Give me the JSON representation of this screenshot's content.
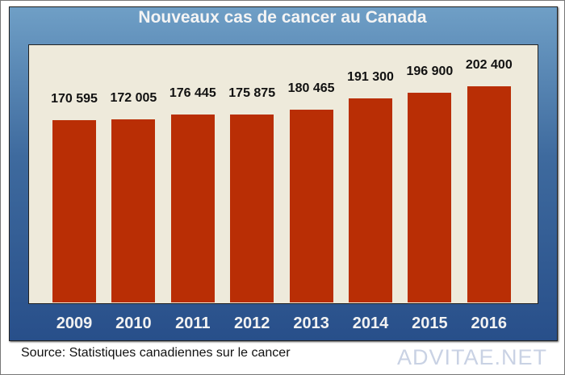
{
  "chart_data": {
    "type": "bar",
    "title": "Nouveaux cas de cancer au Canada",
    "categories": [
      "2009",
      "2010",
      "2011",
      "2012",
      "2013",
      "2014",
      "2015",
      "2016"
    ],
    "values": [
      170595,
      172005,
      176445,
      175875,
      180465,
      191300,
      196900,
      202400
    ],
    "value_labels": [
      "170 595",
      "172 005",
      "176 445",
      "175 875",
      "180 465",
      "191 300",
      "196 900",
      "202 400"
    ],
    "ylim": [
      0,
      242000
    ],
    "grid": false,
    "colors": {
      "bar": "#b92e05",
      "plot_bg": "#eeeadb",
      "panel": "#3e6a9e"
    }
  },
  "source": "Source: Statistiques canadiennes sur le cancer",
  "watermark": "ADVITAE.NET"
}
